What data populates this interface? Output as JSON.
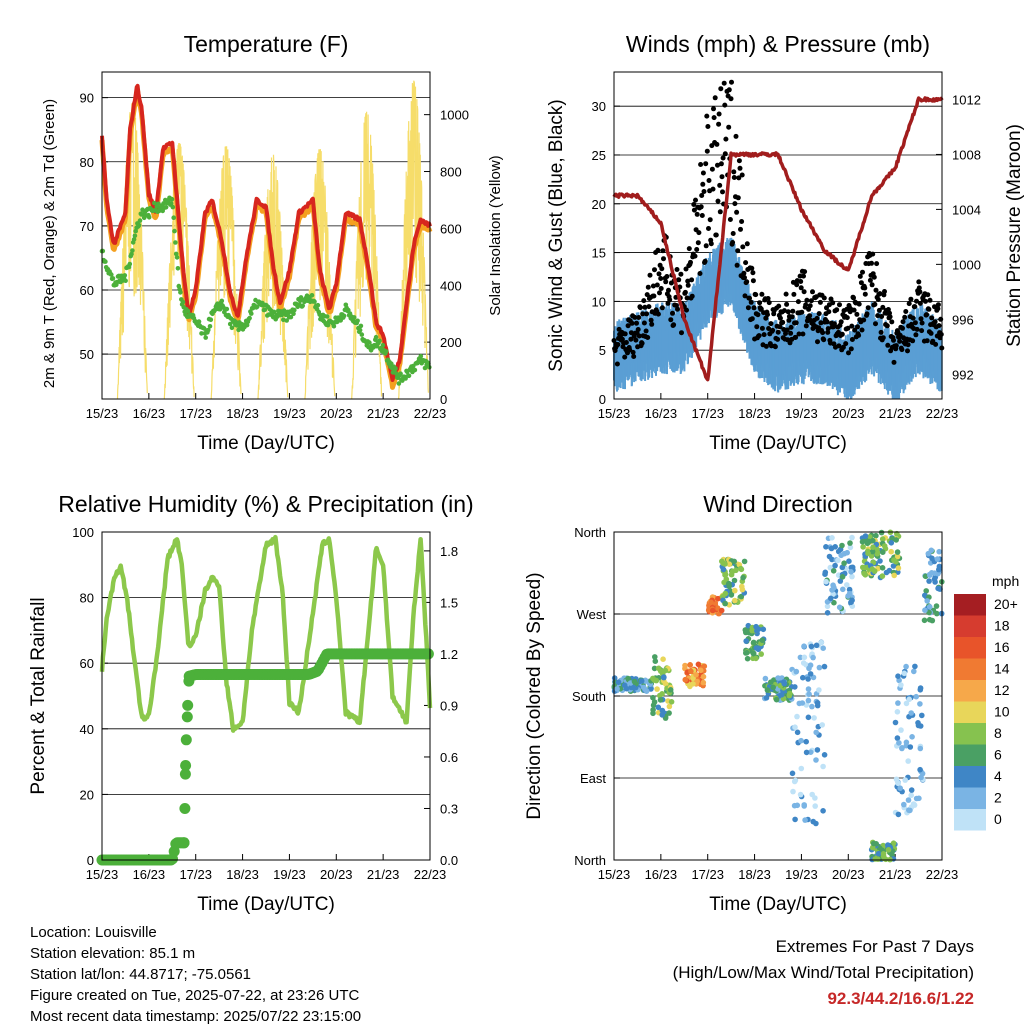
{
  "colors": {
    "temp2m": "#d7261e",
    "temp9m": "#f4a020",
    "dewpoint": "#4cb03a",
    "solar": "#f6dd6a",
    "wind": "#5a9fd4",
    "gust": "#000000",
    "pressure": "#a11d1d",
    "humidity": "#8cc84b",
    "precip": "#4cb03a"
  },
  "x_ticks": [
    "15/23",
    "16/23",
    "17/23",
    "18/23",
    "19/23",
    "20/23",
    "21/23",
    "22/23"
  ],
  "chart_data": [
    {
      "type": "line",
      "title": "Temperature (F)",
      "xlabel": "Time (Day/UTC)",
      "ylabel": "2m & 9m T (Red, Orange) & 2m Td (Green)",
      "ylabel_right": "Solar Insolation (Yellow)",
      "ylim": [
        43,
        94
      ],
      "ylim_right": [
        0,
        1150
      ],
      "yticks": [
        50,
        60,
        70,
        80,
        90
      ],
      "yticks_right": [
        0,
        200,
        400,
        600,
        800,
        1000
      ],
      "x": [
        0,
        0.1,
        0.25,
        0.5,
        0.6,
        0.75,
        0.85,
        1.0,
        1.15,
        1.3,
        1.5,
        1.65,
        1.75,
        1.85,
        2.0,
        2.2,
        2.35,
        2.55,
        2.75,
        2.9,
        3.1,
        3.3,
        3.5,
        3.65,
        3.8,
        4.0,
        4.2,
        4.5,
        4.65,
        4.85,
        5.0,
        5.2,
        5.5,
        5.7,
        5.85,
        6.0,
        6.2,
        6.35,
        6.5,
        6.65,
        6.8,
        7.0
      ],
      "series": [
        {
          "name": "2m T",
          "values": [
            84,
            74,
            67,
            72,
            85,
            92,
            88,
            75,
            72,
            82,
            83,
            70,
            62,
            56,
            60,
            72,
            74,
            68,
            59,
            56,
            66,
            74,
            73,
            64,
            58,
            63,
            72,
            74,
            63,
            57,
            61,
            72,
            71,
            63,
            55,
            53,
            46,
            49,
            58,
            67,
            71,
            70
          ]
        },
        {
          "name": "2m Td",
          "values": [
            66,
            64,
            61,
            62,
            65,
            70,
            72,
            72,
            73,
            73,
            74,
            60,
            57,
            56,
            55,
            53,
            56,
            58,
            55,
            54,
            55,
            58,
            57,
            56,
            56,
            56,
            58,
            59,
            56,
            55,
            55,
            57,
            54,
            51,
            52,
            51,
            48,
            46,
            47,
            48,
            49,
            48
          ]
        }
      ],
      "solar_days": [
        {
          "peak": 0.65,
          "max": 1040
        },
        {
          "peak": 1.65,
          "max": 900
        },
        {
          "peak": 2.65,
          "max": 890
        },
        {
          "peak": 3.65,
          "max": 860
        },
        {
          "peak": 4.65,
          "max": 880
        },
        {
          "peak": 5.65,
          "max": 1010
        },
        {
          "peak": 6.65,
          "max": 1120
        }
      ]
    },
    {
      "type": "line",
      "title": "Winds (mph) & Pressure (mb)",
      "xlabel": "Time (Day/UTC)",
      "ylabel": "Sonic Wind & Gust (Blue, Black)",
      "ylabel_right": "Station Pressure (Maroon)",
      "ylim": [
        0,
        33.5
      ],
      "ylim_right": [
        990.2,
        1014
      ],
      "yticks": [
        0,
        5,
        10,
        15,
        20,
        25,
        30
      ],
      "yticks_right": [
        992,
        996,
        1000,
        1004,
        1008,
        1012
      ],
      "x": [
        0,
        0.5,
        1.0,
        1.5,
        2.0,
        2.5,
        3.0,
        3.5,
        4.0,
        4.5,
        5.0,
        5.5,
        6.0,
        6.5,
        7.0
      ],
      "series": [
        {
          "name": "Wind",
          "values": [
            4,
            5,
            6,
            6,
            11,
            13,
            6,
            4,
            5,
            5,
            3,
            6,
            3,
            6,
            4
          ]
        },
        {
          "name": "Gust",
          "values": [
            5,
            7,
            13,
            10,
            22,
            25,
            9,
            7,
            10,
            8,
            7,
            12,
            5,
            9,
            7
          ]
        },
        {
          "name": "Pressure",
          "values": [
            1005,
            1005,
            1003,
            996,
            991.5,
            1008,
            1008,
            1008,
            1004,
            1001,
            999.5,
            1005,
            1007,
            1012,
            1012
          ]
        }
      ]
    },
    {
      "type": "line",
      "title": "Relative Humidity (%) & Precipitation (in)",
      "xlabel": "Time (Day/UTC)",
      "ylabel": "Percent & Total Rainfall",
      "ylim": [
        0,
        100
      ],
      "ylim_right": [
        0,
        1.91
      ],
      "yticks": [
        0,
        20,
        40,
        60,
        80,
        100
      ],
      "yticks_right": [
        "0.0",
        "0.3",
        "0.6",
        "0.9",
        "1.2",
        "1.5",
        "1.8"
      ],
      "x": [
        0,
        0.1,
        0.25,
        0.4,
        0.55,
        0.7,
        0.85,
        1.0,
        1.2,
        1.4,
        1.6,
        1.7,
        1.85,
        2.0,
        2.2,
        2.35,
        2.5,
        2.65,
        2.8,
        3.0,
        3.2,
        3.5,
        3.7,
        3.85,
        4.0,
        4.2,
        4.5,
        4.7,
        4.85,
        5.0,
        5.2,
        5.5,
        5.7,
        5.85,
        6.0,
        6.2,
        6.5,
        6.65,
        6.8,
        7.0
      ],
      "series": [
        {
          "name": "RH",
          "values": [
            58,
            74,
            85,
            90,
            78,
            60,
            43,
            44,
            65,
            92,
            98,
            90,
            65,
            68,
            82,
            86,
            84,
            55,
            40,
            42,
            70,
            96,
            98,
            82,
            48,
            45,
            75,
            96,
            98,
            80,
            45,
            42,
            72,
            95,
            90,
            50,
            42,
            75,
            98,
            47
          ]
        }
      ],
      "precip": {
        "x": [
          0,
          1.5,
          1.58,
          1.75,
          1.77,
          1.78,
          1.8,
          1.83,
          1.86,
          2.0,
          4.4,
          4.6,
          4.8,
          5.0,
          7.0
        ],
        "values": [
          0,
          0,
          0.1,
          0.1,
          0.3,
          0.5,
          0.7,
          0.9,
          1.07,
          1.08,
          1.08,
          1.1,
          1.2,
          1.2,
          1.2
        ]
      }
    },
    {
      "type": "scatter",
      "title": "Wind Direction",
      "xlabel": "Time (Day/UTC)",
      "ylabel": "Direction (Colored By Speed)",
      "ylim": [
        0,
        360
      ],
      "yticks": [
        "North",
        "East",
        "South",
        "West",
        "North"
      ],
      "colorbar": {
        "title": "mph",
        "labels": [
          "20+",
          "18",
          "16",
          "14",
          "12",
          "10",
          "8",
          "6",
          "4",
          "2",
          "0"
        ],
        "colors": [
          "#a51e22",
          "#d63c2f",
          "#e8542a",
          "#f07a32",
          "#f6a84a",
          "#e8d65a",
          "#86c24f",
          "#4aa064",
          "#3f86c6",
          "#7ab4e4",
          "#bfe2f7"
        ]
      },
      "clusters": [
        {
          "x": [
            0,
            0.8
          ],
          "dir": [
            185,
            200
          ],
          "speed": 4
        },
        {
          "x": [
            0.8,
            1.25
          ],
          "dir": [
            155,
            225
          ],
          "speed": 7
        },
        {
          "x": [
            1.5,
            1.95
          ],
          "dir": [
            190,
            215
          ],
          "speed": 13
        },
        {
          "x": [
            2.0,
            2.3
          ],
          "dir": [
            270,
            290
          ],
          "speed": 14
        },
        {
          "x": [
            2.3,
            2.8
          ],
          "dir": [
            280,
            330
          ],
          "speed": 7
        },
        {
          "x": [
            2.8,
            3.2
          ],
          "dir": [
            220,
            260
          ],
          "speed": 6
        },
        {
          "x": [
            3.2,
            3.8
          ],
          "dir": [
            175,
            200
          ],
          "speed": 5
        },
        {
          "x": [
            3.8,
            4.5
          ],
          "dir": [
            40,
            240
          ],
          "speed": 2
        },
        {
          "x": [
            4.5,
            5.1
          ],
          "dir": [
            270,
            355
          ],
          "speed": 3
        },
        {
          "x": [
            5.3,
            6.1
          ],
          "dir": [
            310,
            360
          ],
          "speed": 7
        },
        {
          "x": [
            5.5,
            6.0
          ],
          "dir": [
            0,
            20
          ],
          "speed": 6
        },
        {
          "x": [
            6.0,
            6.6
          ],
          "dir": [
            50,
            220
          ],
          "speed": 2
        },
        {
          "x": [
            6.6,
            7.0
          ],
          "dir": [
            260,
            340
          ],
          "speed": 4
        }
      ]
    }
  ],
  "info": {
    "location": "Location: Louisville",
    "elevation": "Station elevation: 85.1 m",
    "latlon": "Station lat/lon: 44.8717; -75.0561",
    "created": "Figure created on Tue, 2025-07-22, at 23:26 UTC",
    "timestamp": "Most recent data timestamp: 2025/07/22 23:15:00"
  },
  "extremes": {
    "title": "Extremes For Past 7 Days",
    "subtitle": "(High/Low/Max Wind/Total Precipitation)",
    "values": "92.3/44.2/16.6/1.22"
  }
}
